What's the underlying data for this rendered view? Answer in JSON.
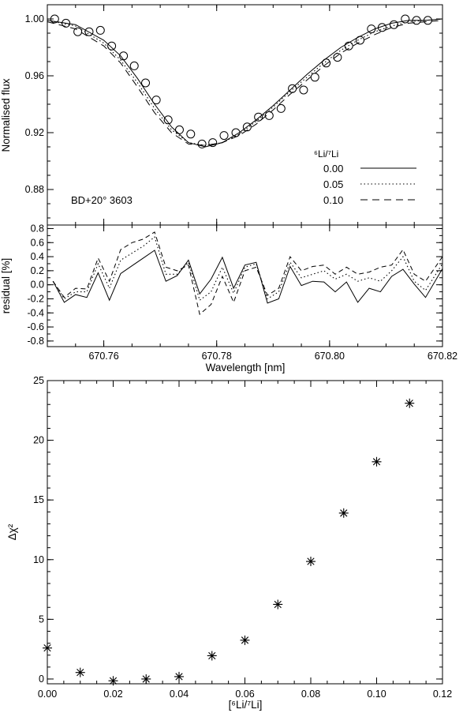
{
  "chart_data": [
    {
      "type": "line",
      "panel": "spectrum",
      "ylabel": "Normalised flux",
      "xlim": [
        670.75,
        670.82
      ],
      "ylim": [
        0.855,
        1.01
      ],
      "yticks": [
        "0.88",
        "0.92",
        "0.96",
        "1.00"
      ],
      "ytick_values": [
        0.88,
        0.92,
        0.96,
        1.0
      ],
      "grid": false,
      "annotation": "BD+20° 3603",
      "legend_title": "⁶Li/⁷Li",
      "legend_position": "right",
      "observed": {
        "x": [
          670.7513,
          670.7533,
          670.7554,
          670.7574,
          670.7594,
          670.7614,
          670.7635,
          670.7654,
          670.7674,
          670.7693,
          670.7714,
          670.7734,
          670.7754,
          670.7774,
          670.7793,
          670.7813,
          670.7834,
          670.7854,
          670.7874,
          670.7893,
          670.7914,
          670.7934,
          670.7954,
          670.7974,
          670.7994,
          670.8014,
          670.8034,
          670.8054,
          670.8074,
          670.8093,
          670.8114,
          670.8134,
          670.8154,
          670.8174
        ],
        "y": [
          1.0,
          0.997,
          0.991,
          0.991,
          0.992,
          0.981,
          0.974,
          0.967,
          0.955,
          0.943,
          0.929,
          0.922,
          0.919,
          0.912,
          0.913,
          0.918,
          0.92,
          0.924,
          0.931,
          0.932,
          0.937,
          0.951,
          0.95,
          0.959,
          0.969,
          0.973,
          0.981,
          0.985,
          0.993,
          0.994,
          0.996,
          1.0,
          0.999,
          0.999
        ]
      },
      "series": [
        {
          "name": "0.00",
          "style": "solid",
          "x": [
            670.75,
            670.755,
            670.76,
            670.763,
            670.766,
            670.769,
            670.772,
            670.775,
            670.778,
            670.781,
            670.784,
            670.787,
            670.79,
            670.793,
            670.796,
            670.799,
            670.802,
            670.805,
            670.808,
            670.811,
            670.814,
            670.817,
            670.82
          ],
          "y": [
            0.999,
            0.996,
            0.985,
            0.974,
            0.958,
            0.94,
            0.924,
            0.913,
            0.91,
            0.913,
            0.92,
            0.929,
            0.939,
            0.95,
            0.961,
            0.971,
            0.98,
            0.987,
            0.993,
            0.997,
            0.999,
            0.999,
            1.0
          ]
        },
        {
          "name": "0.05",
          "style": "dotted",
          "x": [
            670.75,
            670.755,
            670.76,
            670.763,
            670.766,
            670.769,
            670.772,
            670.775,
            670.778,
            670.781,
            670.784,
            670.787,
            670.79,
            670.793,
            670.796,
            670.799,
            670.802,
            670.805,
            670.808,
            670.811,
            670.814,
            670.817,
            670.82
          ],
          "y": [
            0.999,
            0.995,
            0.983,
            0.971,
            0.955,
            0.937,
            0.922,
            0.913,
            0.911,
            0.913,
            0.919,
            0.928,
            0.938,
            0.949,
            0.959,
            0.969,
            0.978,
            0.985,
            0.991,
            0.995,
            0.998,
            0.999,
            1.0
          ]
        },
        {
          "name": "0.10",
          "style": "dashed",
          "x": [
            670.75,
            670.755,
            670.76,
            670.763,
            670.766,
            670.769,
            670.772,
            670.775,
            670.778,
            670.781,
            670.784,
            670.787,
            670.79,
            670.793,
            670.796,
            670.799,
            670.802,
            670.805,
            670.808,
            670.811,
            670.814,
            670.817,
            670.82
          ],
          "y": [
            0.998,
            0.993,
            0.981,
            0.969,
            0.952,
            0.934,
            0.92,
            0.912,
            0.911,
            0.913,
            0.918,
            0.926,
            0.936,
            0.947,
            0.957,
            0.967,
            0.976,
            0.983,
            0.989,
            0.994,
            0.997,
            0.998,
            0.999
          ]
        }
      ]
    },
    {
      "type": "line",
      "panel": "residual",
      "xlabel": "Wavelength [nm]",
      "ylabel": "residual [%]",
      "xlim": [
        670.75,
        670.82
      ],
      "ylim": [
        -0.88,
        0.85
      ],
      "xticks": [
        "670.76",
        "670.78",
        "670.80",
        "670.82"
      ],
      "xtick_values": [
        670.76,
        670.78,
        670.8,
        670.82
      ],
      "yticks": [
        "-0.8",
        "-0.6",
        "-0.4",
        "-0.2",
        "0.0",
        "0.2",
        "0.4",
        "0.6",
        "0.8"
      ],
      "ytick_values": [
        -0.8,
        -0.6,
        -0.4,
        -0.2,
        0.0,
        0.2,
        0.4,
        0.6,
        0.8
      ],
      "grid": false,
      "x": [
        670.751,
        670.753,
        670.755,
        670.757,
        670.759,
        670.761,
        670.763,
        670.765,
        670.767,
        670.769,
        670.771,
        670.773,
        670.775,
        670.777,
        670.779,
        670.781,
        670.783,
        670.785,
        670.787,
        670.789,
        670.791,
        670.793,
        670.795,
        670.797,
        670.799,
        670.801,
        670.803,
        670.805,
        670.807,
        670.809,
        670.811,
        670.813,
        670.815,
        670.817,
        670.82
      ],
      "series": [
        {
          "name": "0.00",
          "style": "solid",
          "values": [
            0.05,
            -0.25,
            -0.14,
            -0.18,
            0.17,
            -0.22,
            0.16,
            0.27,
            0.38,
            0.49,
            0.05,
            0.13,
            0.35,
            -0.13,
            0.08,
            0.39,
            -0.05,
            0.28,
            0.32,
            -0.26,
            -0.2,
            0.26,
            -0.01,
            0.05,
            0.04,
            -0.1,
            0.04,
            -0.25,
            -0.05,
            -0.1,
            0.12,
            0.22,
            0.01,
            -0.18,
            0.23
          ]
        },
        {
          "name": "0.05",
          "style": "dotted",
          "values": [
            0.05,
            -0.2,
            -0.1,
            -0.1,
            0.3,
            -0.05,
            0.35,
            0.45,
            0.55,
            0.68,
            0.15,
            0.15,
            0.32,
            -0.22,
            -0.1,
            0.25,
            -0.12,
            0.25,
            0.3,
            -0.2,
            -0.1,
            0.32,
            0.1,
            0.15,
            0.2,
            0.08,
            0.15,
            0.05,
            0.1,
            0.05,
            0.2,
            0.4,
            0.05,
            -0.08,
            0.3
          ]
        },
        {
          "name": "0.10",
          "style": "dashed",
          "values": [
            0.05,
            -0.18,
            -0.05,
            -0.06,
            0.38,
            0.05,
            0.5,
            0.6,
            0.65,
            0.75,
            0.25,
            0.2,
            0.28,
            -0.42,
            -0.28,
            0.12,
            -0.25,
            0.2,
            0.25,
            -0.15,
            -0.05,
            0.4,
            0.2,
            0.26,
            0.28,
            0.15,
            0.25,
            0.15,
            0.18,
            0.25,
            0.28,
            0.5,
            0.15,
            0.05,
            0.4
          ]
        }
      ]
    },
    {
      "type": "scatter",
      "panel": "delta-chi2",
      "xlabel": "[⁶Li/⁷Li]",
      "ylabel": "Δχ²",
      "xlim": [
        0.0,
        0.12
      ],
      "ylim": [
        -0.4,
        25.0
      ],
      "xticks": [
        "0.00",
        "0.02",
        "0.04",
        "0.06",
        "0.08",
        "0.10",
        "0.12"
      ],
      "xtick_values": [
        0.0,
        0.02,
        0.04,
        0.06,
        0.08,
        0.1,
        0.12
      ],
      "yticks": [
        "0",
        "5",
        "10",
        "15",
        "20",
        "25"
      ],
      "ytick_values": [
        0,
        5,
        10,
        15,
        20,
        25
      ],
      "grid": false,
      "marker": "asterisk",
      "x": [
        0.0,
        0.01,
        0.02,
        0.03,
        0.04,
        0.05,
        0.06,
        0.07,
        0.08,
        0.09,
        0.1,
        0.11
      ],
      "y": [
        2.6,
        0.55,
        -0.15,
        0.0,
        0.2,
        1.95,
        3.25,
        6.25,
        9.85,
        13.9,
        18.2,
        23.1
      ]
    }
  ]
}
